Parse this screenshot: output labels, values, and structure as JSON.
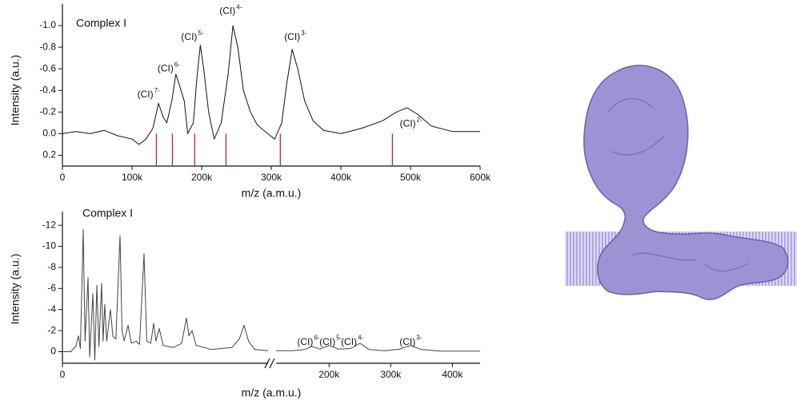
{
  "chart_data": [
    {
      "type": "line",
      "title": "Complex I",
      "x_label": "m/z (a.m.u.)",
      "y_label": "Intensity (a.u.)",
      "color": "#111111",
      "ylim": [
        0.3,
        -1.2
      ],
      "yticks": [
        {
          "value": -1,
          "label": "-1.0"
        },
        -0.8,
        -0.6,
        -0.4,
        -0.2,
        {
          "value": 0,
          "label": "0.0"
        },
        0.2
      ],
      "xlim": [
        0,
        600000
      ],
      "xticks": [
        0,
        {
          "value": 100000,
          "label": "100k"
        },
        {
          "value": 200000,
          "label": "200k"
        },
        {
          "value": 300000,
          "label": "300k"
        },
        {
          "value": 400000,
          "label": "400k"
        },
        {
          "value": 500000,
          "label": "500k"
        },
        {
          "value": 600000,
          "label": "600k"
        }
      ],
      "x": [
        0,
        20000,
        40000,
        60000,
        80000,
        100000,
        110000,
        120000,
        130000,
        138000,
        145000,
        150000,
        157000,
        163000,
        168000,
        175000,
        180000,
        188000,
        193000,
        198000,
        203000,
        210000,
        218000,
        228000,
        238000,
        245000,
        252000,
        260000,
        270000,
        280000,
        295000,
        305000,
        315000,
        322000,
        330000,
        338000,
        348000,
        360000,
        375000,
        400000,
        430000,
        460000,
        480000,
        495000,
        510000,
        530000,
        560000,
        600000
      ],
      "values": [
        0,
        -0.02,
        0,
        -0.03,
        0.02,
        0.05,
        0.1,
        0.05,
        -0.05,
        -0.28,
        -0.15,
        -0.1,
        -0.3,
        -0.55,
        -0.45,
        -0.3,
        0,
        -0.1,
        -0.5,
        -0.82,
        -0.6,
        -0.2,
        0.05,
        -0.1,
        -0.55,
        -1.0,
        -0.8,
        -0.4,
        -0.2,
        -0.08,
        0,
        0.05,
        -0.1,
        -0.45,
        -0.78,
        -0.6,
        -0.3,
        -0.12,
        -0.03,
        0,
        -0.05,
        -0.12,
        -0.2,
        -0.24,
        -0.18,
        -0.07,
        -0.02,
        -0.02
      ],
      "peak_markers": {
        "color": "#cc2222",
        "x": [
          135000,
          158000,
          190000,
          235000,
          313000,
          474000
        ]
      },
      "annotations": [
        {
          "label": "(CI)",
          "charge": "7-",
          "x": 126000,
          "y": -0.36
        },
        {
          "label": "(CI)",
          "charge": "6-",
          "x": 155000,
          "y": -0.6
        },
        {
          "label": "(CI)",
          "charge": "5-",
          "x": 189000,
          "y": -0.89
        },
        {
          "label": "(CI)",
          "charge": "4-",
          "x": 244000,
          "y": -1.13
        },
        {
          "label": "(CI)",
          "charge": "3-",
          "x": 337000,
          "y": -0.89
        },
        {
          "label": "(CI)",
          "charge": "2-",
          "x": 503000,
          "y": -0.09
        }
      ]
    },
    {
      "type": "line",
      "title": "Complex I",
      "x_label": "m/z (a.m.u.)",
      "y_label": "Intensity (a.u.)",
      "color": "#444444",
      "ylim": [
        1.1,
        -13.3
      ],
      "yticks": [
        -12,
        -10,
        -8,
        -6,
        -4,
        -2,
        0
      ],
      "segments": [
        {
          "xlim": [
            0,
            20000
          ],
          "xticks": [
            0
          ],
          "x": [
            0,
            800,
            1300,
            1560,
            1750,
            2020,
            2200,
            2490,
            2650,
            2960,
            3150,
            3350,
            3550,
            3810,
            3950,
            4120,
            4300,
            4670,
            4900,
            5200,
            5600,
            5800,
            6000,
            6380,
            6700,
            7160,
            7500,
            7940,
            8200,
            8600,
            8870,
            9100,
            9420,
            9800,
            10800,
            11600,
            12060,
            12300,
            12610,
            13000,
            14500,
            16500,
            17200,
            17670,
            18100,
            18700,
            20000
          ],
          "values": [
            0,
            0,
            -0.5,
            -1.5,
            -0.3,
            -11.6,
            -1,
            -7,
            0.5,
            -5.5,
            0.8,
            -6.3,
            -0.5,
            -6.5,
            -1,
            -4.5,
            -1,
            -4,
            -1.5,
            -1.2,
            -11,
            -2,
            -1,
            -2.5,
            -0.8,
            -1,
            -0.7,
            -9.3,
            -1,
            -0.8,
            -2.7,
            -1,
            -2.2,
            -0.6,
            -0.4,
            -0.8,
            -3.2,
            -1.5,
            -2,
            -0.6,
            -0.2,
            -0.4,
            -1.2,
            -2.5,
            -1,
            -0.2,
            -0.1
          ]
        },
        {
          "xlim": [
            114000,
            445000
          ],
          "xticks": [
            {
              "value": 200000,
              "label": "200k"
            },
            {
              "value": 300000,
              "label": "300k"
            },
            {
              "value": 400000,
              "label": "400k"
            }
          ],
          "x": [
            114000,
            140000,
            160000,
            172000,
            185000,
            200000,
            215000,
            235000,
            250000,
            265000,
            290000,
            315000,
            332000,
            350000,
            380000,
            445000
          ],
          "values": [
            -0.1,
            -0.1,
            -0.2,
            -0.5,
            -0.25,
            -0.6,
            -0.25,
            -0.3,
            -0.8,
            -0.2,
            -0.1,
            -0.25,
            -0.6,
            -0.2,
            -0.05,
            -0.05
          ],
          "annotations": [
            {
              "label": "(CI)",
              "charge": "6-",
              "x": 169000,
              "y": -0.9
            },
            {
              "label": "(CI)",
              "charge": "5-",
              "x": 205000,
              "y": -0.9
            },
            {
              "label": "(CI)",
              "charge": "4-",
              "x": 240000,
              "y": -0.9
            },
            {
              "label": "(CI)",
              "charge": "3-",
              "x": 335000,
              "y": -0.9
            }
          ]
        }
      ]
    }
  ]
}
